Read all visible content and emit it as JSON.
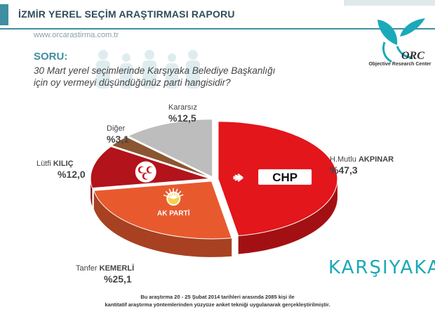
{
  "header": {
    "title": "İZMİR YEREL SEÇİM ARAŞTIRMASI RAPORU"
  },
  "site": "www.orcarastirma.com.tr",
  "question": {
    "label": "SORU:",
    "line1": "30 Mart yerel seçimlerinde Karşıyaka Belediye Başkanlığı",
    "line2": "için oy vermeyi düşündüğünüz parti hangisidir?"
  },
  "logo": {
    "caption": "Objective Research Center",
    "mark": "ORC"
  },
  "watermark": "KARŞIYAKA",
  "footnote": {
    "line1": "Bu araştırma 20 - 25 Şubat 2014 tarihleri arasında 2085 kişi ile",
    "line2": "kantitatif araştırma yöntemlerinden yüzyüze anket tekniği uygulanarak gerçekleştirilmiştir."
  },
  "colors": {
    "accent": "#3f8fa0",
    "chp": "#e2161b",
    "akp": "#e85a2e",
    "mhp": "#b3131a",
    "diger": "#8a5632",
    "kararsiz": "#bdbdbd"
  },
  "chart_data": {
    "type": "pie",
    "slices": [
      {
        "first": "H.Mutlu ",
        "last": "AKPINAR",
        "value": 47.3,
        "label": "%47,3",
        "color": "#e2161b",
        "logo": "CHP"
      },
      {
        "first": "Tanfer ",
        "last": "KEMERLİ",
        "value": 25.1,
        "label": "%25,1",
        "color": "#e85a2e",
        "logo": "AK PARTİ"
      },
      {
        "first": "Lütfi ",
        "last": "KILIÇ",
        "value": 12.0,
        "label": "%12,0",
        "color": "#b3131a",
        "logo": ""
      },
      {
        "first": "Diğer",
        "last": "",
        "value": 3.1,
        "label": "%3,1",
        "color": "#8a5632",
        "logo": ""
      },
      {
        "first": "Kararsız",
        "last": "",
        "value": 12.5,
        "label": "%12,5",
        "color": "#bdbdbd",
        "logo": ""
      }
    ]
  }
}
